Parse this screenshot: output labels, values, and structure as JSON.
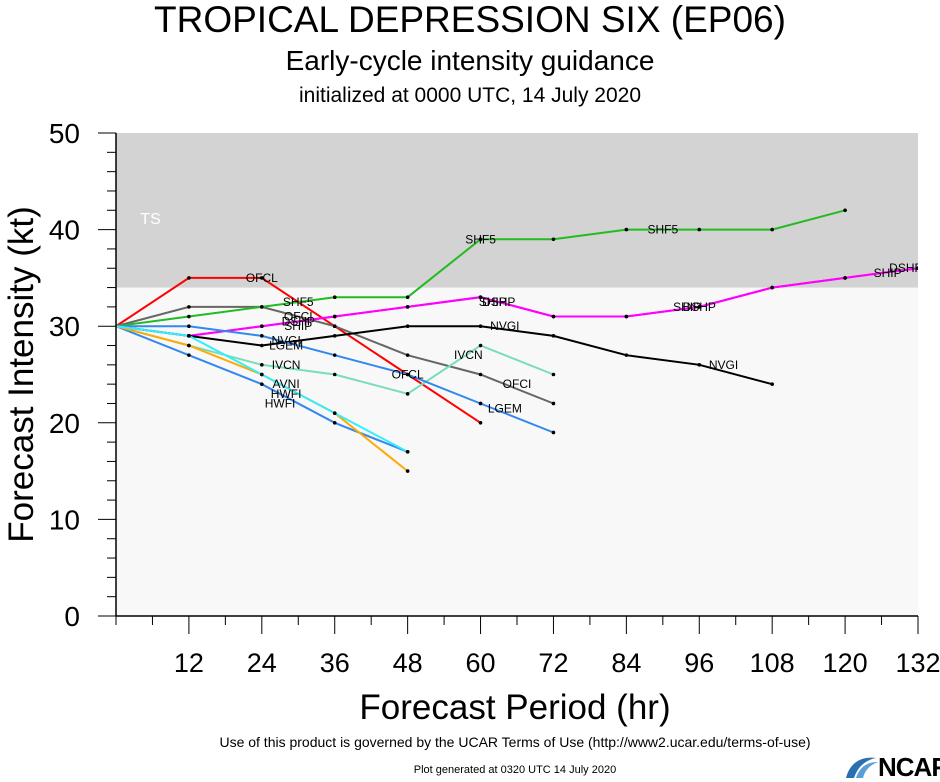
{
  "header": {
    "title": "TROPICAL DEPRESSION SIX (EP06)",
    "subtitle": "Early-cycle intensity guidance",
    "init": "initialized at 0000 UTC, 14 July 2020"
  },
  "footer": {
    "terms": "Use of this product is governed by the UCAR Terms of Use (http://www2.ucar.edu/terms-of-use)",
    "generated": "Plot generated at 0320 UTC   14 July 2020",
    "logo": "NCAR"
  },
  "chart_data": {
    "type": "line",
    "xlabel": "Forecast Period (hr)",
    "ylabel": "Forecast Intensity (kt)",
    "xlim": [
      0,
      132
    ],
    "ylim": [
      0,
      50
    ],
    "xticks": [
      12,
      24,
      36,
      48,
      60,
      72,
      84,
      96,
      108,
      120,
      132
    ],
    "yticks": [
      0,
      10,
      20,
      30,
      40,
      50
    ],
    "band": {
      "label": "TS",
      "from": 34,
      "to": 50,
      "color": "#d3d3d3"
    },
    "background_color": "#f8f8f8",
    "grid": false,
    "series": [
      {
        "name": "OFCL",
        "color": "#ff0000",
        "x": [
          0,
          12,
          24,
          36,
          48,
          60
        ],
        "y": [
          30,
          35,
          35,
          30,
          25,
          20
        ],
        "labels": [
          {
            "x": 24,
            "y": 35
          },
          {
            "x": 48,
            "y": 25
          }
        ]
      },
      {
        "name": "OFCI",
        "color": "#666666",
        "x": [
          0,
          12,
          24,
          36,
          48,
          60,
          72
        ],
        "y": [
          30,
          32,
          32,
          30,
          27,
          25,
          22
        ],
        "labels": [
          {
            "x": 30,
            "y": 31
          },
          {
            "x": 66,
            "y": 24
          }
        ]
      },
      {
        "name": "SHF5",
        "color": "#22bb22",
        "x": [
          0,
          12,
          24,
          36,
          48,
          60,
          72,
          84,
          96,
          108,
          120
        ],
        "y": [
          30,
          31,
          32,
          33,
          33,
          39,
          39,
          40,
          40,
          40,
          42
        ],
        "labels": [
          {
            "x": 30,
            "y": 32.5
          },
          {
            "x": 60,
            "y": 39
          },
          {
            "x": 90,
            "y": 40
          }
        ]
      },
      {
        "name": "DSHP",
        "color": "#ff00ff",
        "x": [
          12,
          24,
          36,
          48,
          60,
          72,
          84,
          96,
          108,
          120,
          132
        ],
        "y": [
          29,
          30,
          31,
          32,
          33,
          31,
          31,
          32,
          34,
          35,
          36
        ],
        "labels": [
          {
            "x": 30,
            "y": 30.5
          },
          {
            "x": 63,
            "y": 32.5
          },
          {
            "x": 96,
            "y": 32
          },
          {
            "x": 130,
            "y": 36
          }
        ]
      },
      {
        "name": "SHIP",
        "color": "#ff00ff",
        "x": [
          12,
          24,
          36,
          48,
          60,
          72,
          84,
          96,
          108,
          120,
          132
        ],
        "y": [
          29,
          30,
          31,
          32,
          33,
          31,
          31,
          32,
          34,
          35,
          36
        ],
        "labels": [
          {
            "x": 30,
            "y": 30
          },
          {
            "x": 62,
            "y": 32.5
          },
          {
            "x": 94,
            "y": 32
          },
          {
            "x": 127,
            "y": 35.5
          }
        ]
      },
      {
        "name": "NVGI",
        "color": "#000000",
        "x": [
          0,
          12,
          24,
          36,
          48,
          60,
          72,
          84,
          96,
          108
        ],
        "y": [
          30,
          29,
          28,
          29,
          30,
          30,
          29,
          27,
          26,
          24
        ],
        "labels": [
          {
            "x": 28,
            "y": 28.5
          },
          {
            "x": 64,
            "y": 30
          },
          {
            "x": 100,
            "y": 26
          }
        ]
      },
      {
        "name": "IVCN",
        "color": "#77ddbb",
        "x": [
          0,
          12,
          24,
          36,
          48,
          60,
          72
        ],
        "y": [
          30,
          28,
          26,
          25,
          23,
          28,
          25
        ],
        "labels": [
          {
            "x": 28,
            "y": 26
          },
          {
            "x": 58,
            "y": 27
          }
        ]
      },
      {
        "name": "LGEM",
        "color": "#3388ee",
        "x": [
          0,
          12,
          24,
          36,
          48,
          60,
          72
        ],
        "y": [
          30,
          30,
          29,
          27,
          25,
          22,
          19
        ],
        "labels": [
          {
            "x": 28,
            "y": 28
          },
          {
            "x": 64,
            "y": 21.5
          }
        ]
      },
      {
        "name": "DRCL",
        "color": "#3388ee",
        "x": [
          0,
          12,
          24,
          36,
          48
        ],
        "y": [
          30,
          27,
          24,
          20,
          17
        ],
        "labels": []
      },
      {
        "name": "AVNI",
        "color": "#ffaa00",
        "x": [
          0,
          12,
          24,
          36,
          48
        ],
        "y": [
          30,
          28,
          25,
          21,
          15
        ],
        "labels": [
          {
            "x": 28,
            "y": 24
          }
        ]
      },
      {
        "name": "HWFI",
        "color": "#33eeff",
        "x": [
          0,
          12,
          24,
          36,
          48
        ],
        "y": [
          30,
          29,
          25,
          21,
          17
        ],
        "labels": [
          {
            "x": 28,
            "y": 23
          },
          {
            "x": 27,
            "y": 22
          }
        ]
      }
    ]
  }
}
